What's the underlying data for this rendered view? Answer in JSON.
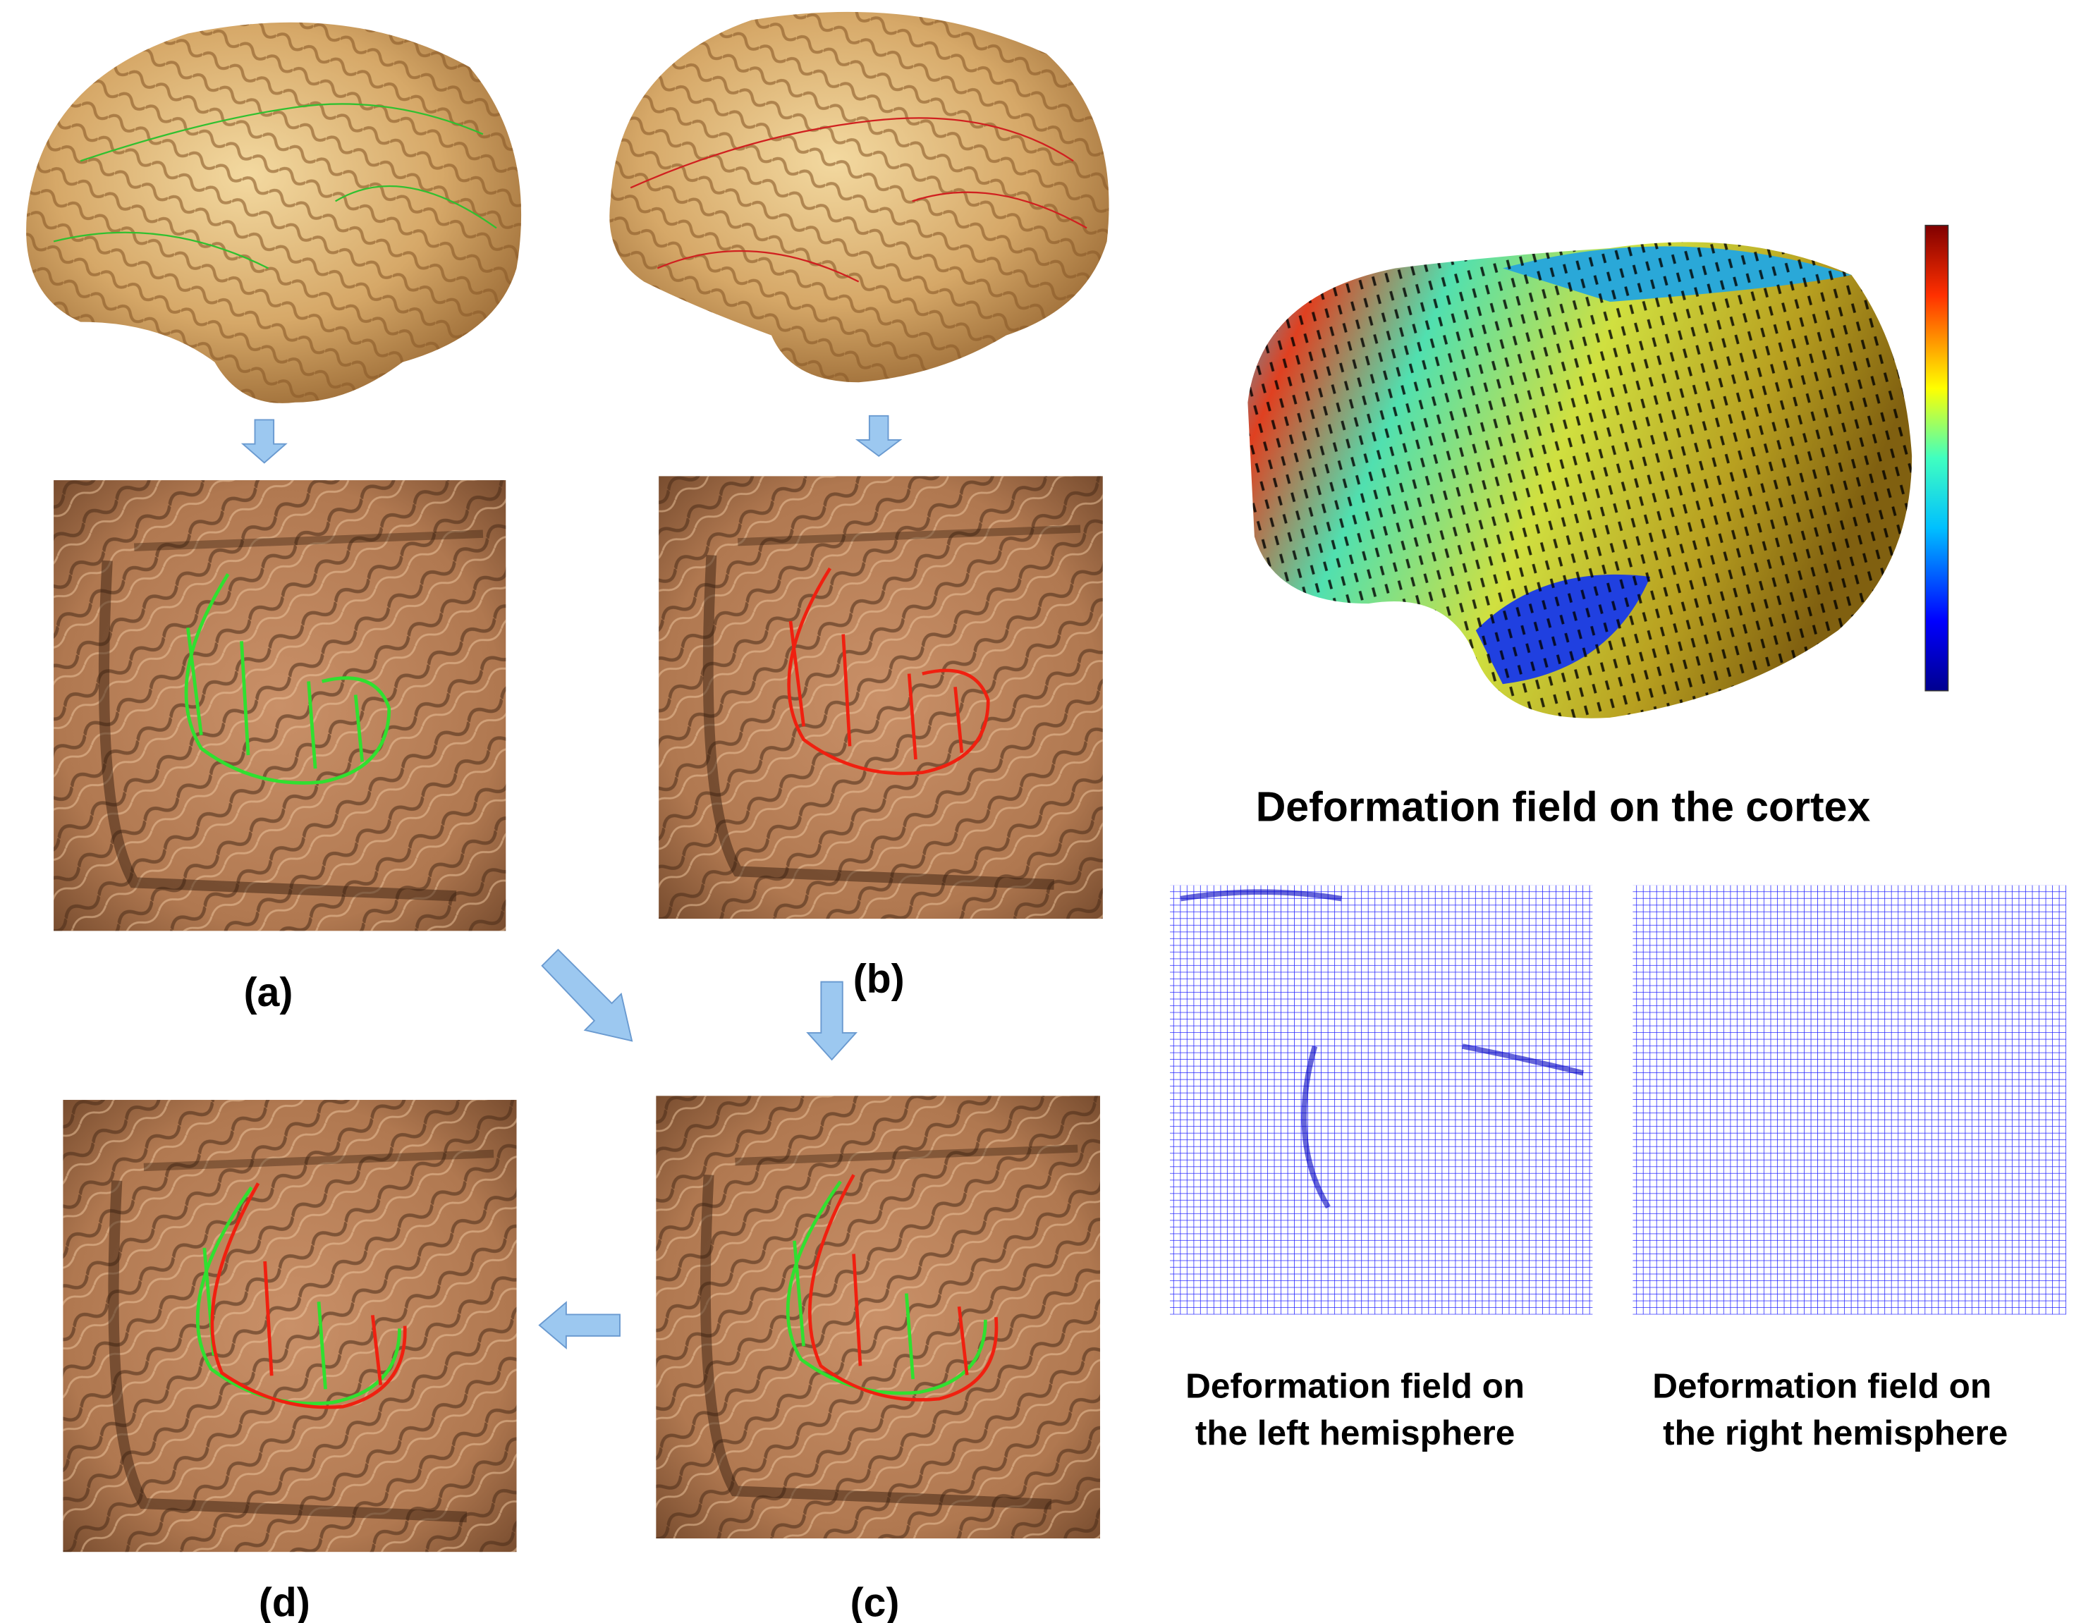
{
  "panels": {
    "a": "(a)",
    "b": "(b)",
    "c": "(c)",
    "d": "(d)"
  },
  "cortex_caption": "Deformation field on the cortex",
  "left_caption": [
    "Deformation field on",
    "the left hemisphere"
  ],
  "right_caption": [
    "Deformation field on",
    "the right hemisphere"
  ]
}
